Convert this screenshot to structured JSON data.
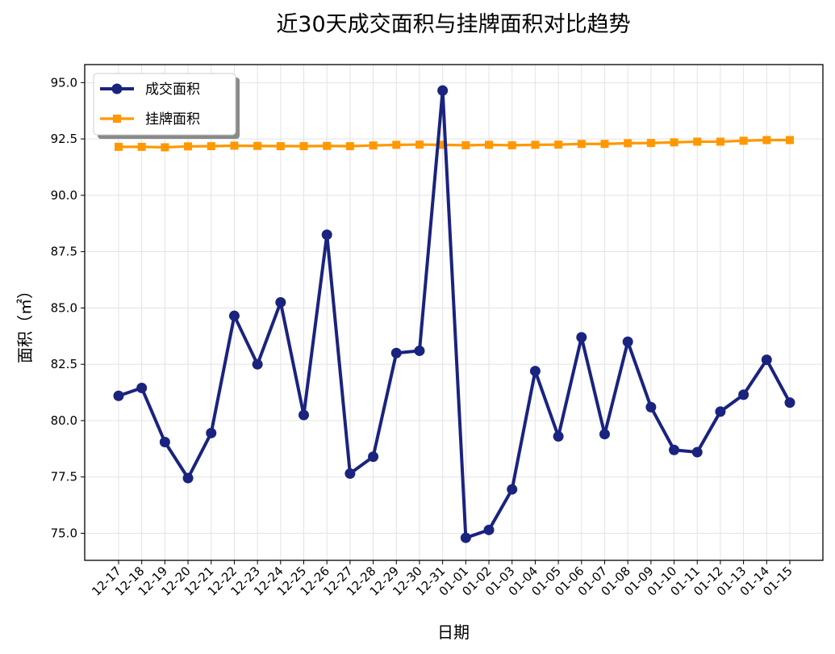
{
  "chart_data": {
    "type": "line",
    "title": "近30天成交面积与挂牌面积对比趋势",
    "xlabel": "日期",
    "ylabel": "面积（㎡）",
    "categories": [
      "12-17",
      "12-18",
      "12-19",
      "12-20",
      "12-21",
      "12-22",
      "12-23",
      "12-24",
      "12-25",
      "12-26",
      "12-27",
      "12-28",
      "12-29",
      "12-30",
      "12-31",
      "01-01",
      "01-02",
      "01-03",
      "01-04",
      "01-05",
      "01-06",
      "01-07",
      "01-08",
      "01-09",
      "01-10",
      "01-11",
      "01-12",
      "01-13",
      "01-14",
      "01-15"
    ],
    "ylim": [
      73.8,
      95.8
    ],
    "yticks": [
      "75.0",
      "77.5",
      "80.0",
      "82.5",
      "85.0",
      "87.5",
      "90.0",
      "92.5",
      "95.0"
    ],
    "grid": true,
    "legend_position": "top-left",
    "series": [
      {
        "name": "成交面积",
        "color": "#1a237e",
        "marker": "circle",
        "values": [
          81.1,
          81.45,
          79.05,
          77.45,
          79.45,
          84.65,
          82.5,
          85.25,
          80.25,
          88.25,
          77.65,
          78.4,
          83.0,
          83.1,
          94.65,
          74.8,
          75.15,
          76.95,
          82.2,
          79.3,
          83.7,
          79.4,
          83.5,
          80.6,
          78.7,
          78.6,
          80.4,
          81.15,
          82.7,
          80.8
        ]
      },
      {
        "name": "挂牌面积",
        "color": "#ff9800",
        "marker": "square",
        "values": [
          92.15,
          92.15,
          92.13,
          92.17,
          92.18,
          92.2,
          92.19,
          92.18,
          92.18,
          92.19,
          92.18,
          92.21,
          92.24,
          92.25,
          92.24,
          92.22,
          92.24,
          92.22,
          92.24,
          92.25,
          92.28,
          92.28,
          92.31,
          92.32,
          92.35,
          92.38,
          92.38,
          92.42,
          92.45,
          92.45
        ]
      }
    ]
  }
}
